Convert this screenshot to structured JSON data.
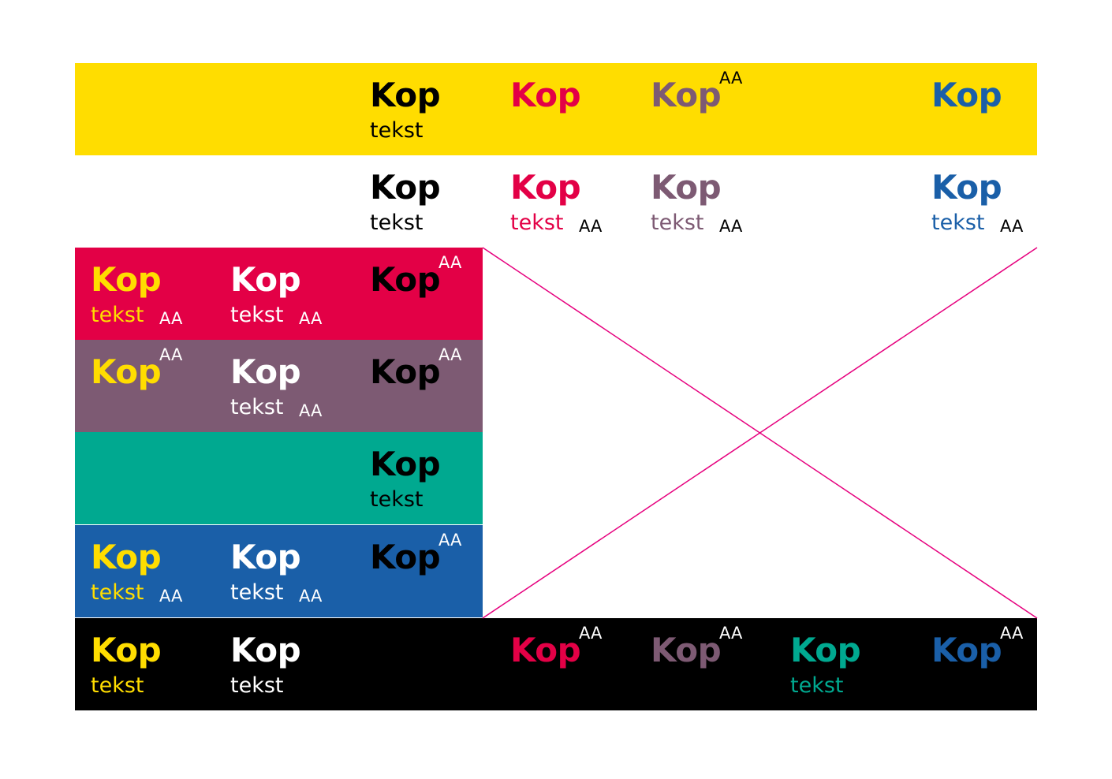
{
  "colors": {
    "yellow": "#ffdd00",
    "red": "#e30046",
    "purple": "#7d5a73",
    "teal": "#00a990",
    "blue": "#1a5fa8",
    "black": "#000000",
    "white": "#ffffff",
    "cross_line": "#e6007e"
  },
  "rows": {
    "yellow": {
      "black": {
        "kop": "Kop",
        "tekst": "tekst"
      },
      "red": {
        "kop": "Kop"
      },
      "purple": {
        "kop": "Kop",
        "aa": "AA"
      },
      "blue": {
        "kop": "Kop"
      }
    },
    "white": {
      "black": {
        "kop": "Kop",
        "tekst": "tekst"
      },
      "red": {
        "kop": "Kop",
        "tekst": "tekst",
        "aa": "AA"
      },
      "purple": {
        "kop": "Kop",
        "tekst": "tekst",
        "aa": "AA"
      },
      "blue": {
        "kop": "Kop",
        "tekst": "tekst",
        "aa": "AA"
      }
    },
    "red": {
      "yellow": {
        "kop": "Kop",
        "tekst": "tekst",
        "aa": "AA"
      },
      "white": {
        "kop": "Kop",
        "tekst": "tekst",
        "aa": "AA"
      },
      "black": {
        "kop": "Kop",
        "aa": "AA"
      }
    },
    "purple": {
      "yellow": {
        "kop": "Kop",
        "aa": "AA"
      },
      "white": {
        "kop": "Kop",
        "tekst": "tekst",
        "aa": "AA"
      },
      "black": {
        "kop": "Kop",
        "aa": "AA"
      }
    },
    "teal": {
      "black": {
        "kop": "Kop",
        "tekst": "tekst"
      }
    },
    "blue": {
      "yellow": {
        "kop": "Kop",
        "tekst": "tekst",
        "aa": "AA"
      },
      "white": {
        "kop": "Kop",
        "tekst": "tekst",
        "aa": "AA"
      },
      "black": {
        "kop": "Kop",
        "aa": "AA"
      }
    },
    "black": {
      "yellow": {
        "kop": "Kop",
        "tekst": "tekst"
      },
      "white": {
        "kop": "Kop",
        "tekst": "tekst"
      },
      "red": {
        "kop": "Kop",
        "aa": "AA"
      },
      "purple": {
        "kop": "Kop",
        "aa": "AA"
      },
      "teal": {
        "kop": "Kop",
        "tekst": "tekst"
      },
      "blue": {
        "kop": "Kop",
        "aa": "AA"
      }
    }
  }
}
